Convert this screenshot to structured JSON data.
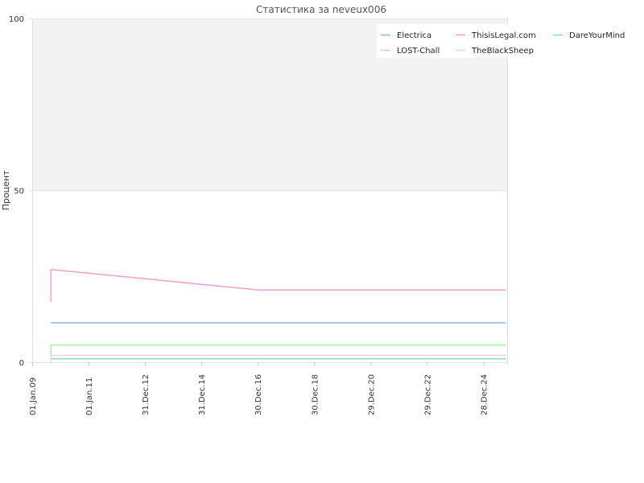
{
  "chart_data": {
    "type": "line",
    "title": "Статистика за neveux006",
    "ylabel": "Процент",
    "xlabel": "",
    "x_ticks": [
      "01.Jan.09",
      "01.Jan.11",
      "31.Dec.12",
      "31.Dec.14",
      "30.Dec.16",
      "30.Dec.18",
      "29.Dec.20",
      "29.Dec.22",
      "28.Dec.24"
    ],
    "x_range": [
      "2009-01-01",
      "2025-11-01"
    ],
    "y_ticks": [
      0,
      50,
      100
    ],
    "ylim": [
      0,
      100
    ],
    "grid": false,
    "legend_position": "top-right",
    "upper_band": {
      "from": 50,
      "to": 100,
      "color": "#f3f3f3"
    },
    "series": [
      {
        "name": "Electrica",
        "color": "#8ab8e8",
        "points": [
          [
            "2009-09-01",
            11.5
          ],
          [
            "2025-10-15",
            11.5
          ]
        ]
      },
      {
        "name": "ThisisLegal.com",
        "color": "#f0a0d0",
        "points": [
          [
            "2009-09-01",
            17.5
          ],
          [
            "2009-09-01",
            27
          ],
          [
            "2017-01-15",
            21
          ],
          [
            "2025-10-15",
            21
          ]
        ]
      },
      {
        "name": "DareYourMind",
        "color": "#80e0d0",
        "points": [
          [
            "2009-09-01",
            0
          ],
          [
            "2009-09-01",
            1
          ],
          [
            "2025-10-15",
            1
          ]
        ]
      },
      {
        "name": "LOST-Chall",
        "color": "#a8f0a0",
        "points": [
          [
            "2009-09-01",
            0
          ],
          [
            "2009-09-01",
            5
          ],
          [
            "2025-10-15",
            5
          ]
        ]
      },
      {
        "name": "TheBlackSheep",
        "color": "#f8d0e0",
        "points": [
          [
            "2009-09-01",
            0
          ],
          [
            "2009-09-01",
            2
          ],
          [
            "2025-10-15",
            2
          ]
        ]
      }
    ]
  }
}
